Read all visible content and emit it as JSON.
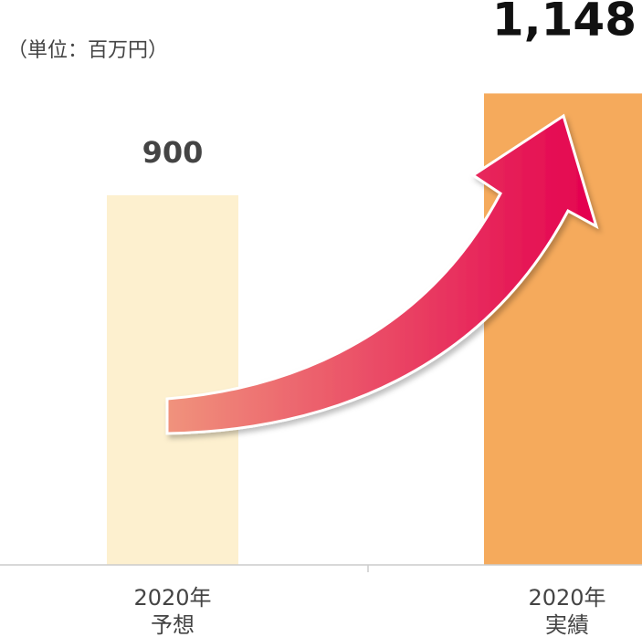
{
  "chart_data": {
    "type": "bar",
    "subtitle": "（単位：百万円）",
    "categories": [
      [
        "2020年",
        "予想"
      ],
      [
        "2020年",
        "実績"
      ]
    ],
    "values": [
      900,
      1148
    ],
    "value_labels": [
      "900",
      "1,148"
    ],
    "colors": [
      "#fdf0cf",
      "#f5aa5c"
    ],
    "ylim": [
      0,
      1200
    ]
  }
}
